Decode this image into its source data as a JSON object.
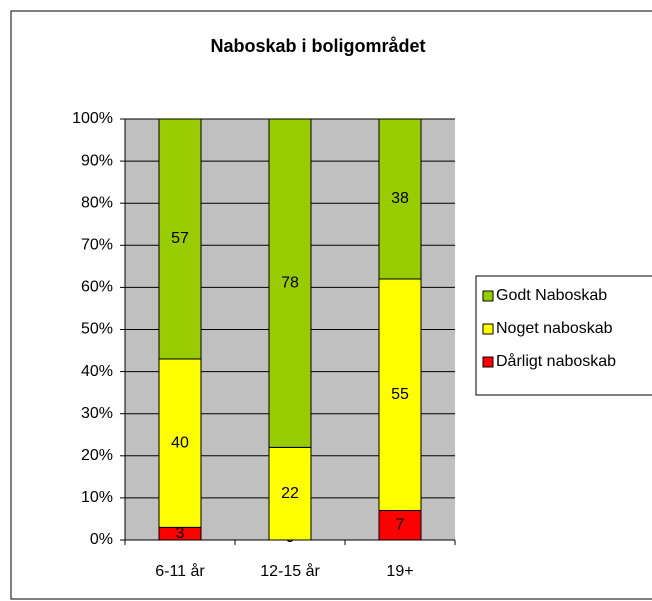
{
  "chart_data": {
    "type": "stacked_bar",
    "title": "Naboskab i boligområdet",
    "categories": [
      "6-11 år",
      "12-15 år",
      "19+"
    ],
    "series": [
      {
        "name": "Dårligt naboskab",
        "color": "#ff0000",
        "values": [
          3,
          0,
          7
        ]
      },
      {
        "name": "Noget naboskab",
        "color": "#ffff00",
        "values": [
          40,
          22,
          55
        ]
      },
      {
        "name": "Godt Naboskab",
        "color": "#99cc00",
        "values": [
          57,
          78,
          38
        ]
      }
    ],
    "ylim": [
      0,
      100
    ],
    "yticks": [
      {
        "value": 0,
        "label": "0%"
      },
      {
        "value": 10,
        "label": "10%"
      },
      {
        "value": 20,
        "label": "20%"
      },
      {
        "value": 30,
        "label": "30%"
      },
      {
        "value": 40,
        "label": "40%"
      },
      {
        "value": 50,
        "label": "50%"
      },
      {
        "value": 60,
        "label": "60%"
      },
      {
        "value": 70,
        "label": "70%"
      },
      {
        "value": 80,
        "label": "80%"
      },
      {
        "value": 90,
        "label": "90%"
      },
      {
        "value": 100,
        "label": "100%"
      }
    ],
    "grid": true,
    "legend": "right"
  }
}
